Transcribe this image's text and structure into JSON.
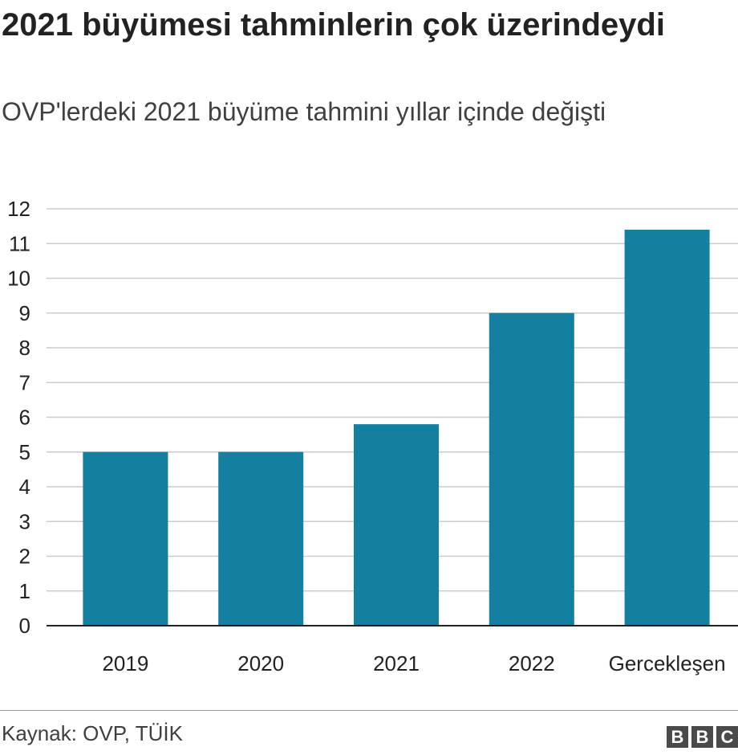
{
  "chart_data": {
    "type": "bar",
    "title": "2021 büyümesi tahminlerin çok üzerindeydi",
    "subtitle": "OVP'lerdeki 2021 büyüme tahmini yıllar içinde değişti",
    "categories": [
      "2019",
      "2020",
      "2021",
      "2022",
      "Gercekleşen"
    ],
    "values": [
      5.0,
      5.0,
      5.8,
      9.0,
      11.4
    ],
    "yticks": [
      0,
      1,
      2,
      3,
      4,
      5,
      6,
      7,
      8,
      9,
      10,
      11,
      12
    ],
    "ylim": [
      0,
      12
    ],
    "grid": true,
    "bar_color": "#1380a1",
    "xlabel": "",
    "ylabel": ""
  },
  "footer": {
    "source": "Kaynak: OVP, TÜİK",
    "logo_letters": [
      "B",
      "B",
      "C"
    ]
  }
}
